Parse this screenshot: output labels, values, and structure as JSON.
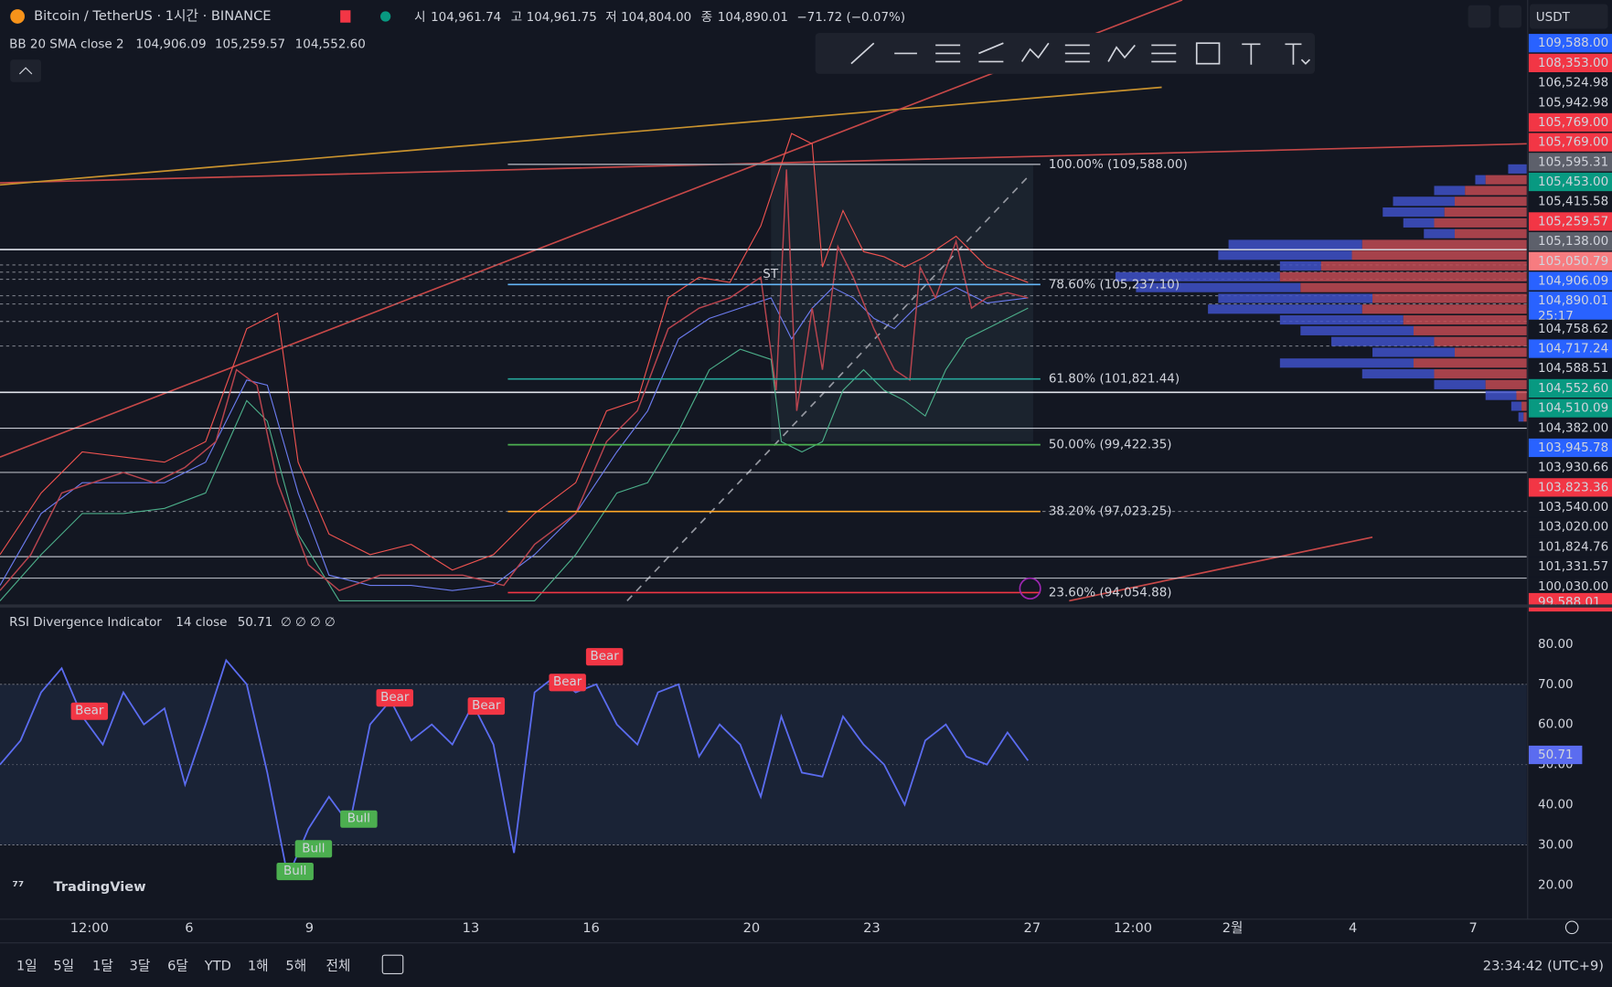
{
  "header": {
    "symbol": "Bitcoin / TetherUS · 1시간 · BINANCE",
    "open_label": "시",
    "open": "104,961.74",
    "high_label": "고",
    "high": "104,961.75",
    "low_label": "저",
    "low": "104,804.00",
    "close_label": "종",
    "close": "104,890.01",
    "change": "−71.72 (−0.07%)",
    "currency": "USDT"
  },
  "bb": {
    "name": "BB 20 SMA close 2",
    "basis": "104,906.09",
    "upper": "105,259.57",
    "lower": "104,552.60"
  },
  "price_labels": [
    {
      "text": "109,588.00",
      "color": "#2962ff"
    },
    {
      "text": "108,353.00",
      "color": "#f23645"
    },
    {
      "text": "106,524.98",
      "color": "#000000"
    },
    {
      "text": "105,942.98",
      "color": "#000000"
    },
    {
      "text": "105,769.00",
      "color": "#f23645"
    },
    {
      "text": "105,769.00",
      "color": "#f23645"
    },
    {
      "text": "105,595.31",
      "color": "#5d606b"
    },
    {
      "text": "105,453.00",
      "color": "#089981"
    },
    {
      "text": "105,415.58",
      "color": "#000000"
    },
    {
      "text": "105,259.57",
      "color": "#f23645"
    },
    {
      "text": "105,138.00",
      "color": "#5d606b"
    },
    {
      "text": "105,050.79",
      "color": "#f77c80"
    },
    {
      "text": "104,906.09",
      "color": "#2962ff"
    },
    {
      "text": "104,890.01",
      "color": "#2962ff"
    },
    {
      "text": "104,758.62",
      "color": "#000000"
    },
    {
      "text": "104,717.24",
      "color": "#2962ff"
    },
    {
      "text": "104,588.51",
      "color": "#000000"
    },
    {
      "text": "104,552.60",
      "color": "#089981"
    },
    {
      "text": "104,510.09",
      "color": "#089981"
    },
    {
      "text": "104,382.00",
      "color": "#000000"
    },
    {
      "text": "103,945.78",
      "color": "#2962ff"
    },
    {
      "text": "103,930.66",
      "color": "#000000"
    },
    {
      "text": "103,823.36",
      "color": "#f23645"
    },
    {
      "text": "103,540.00",
      "color": "#000000"
    },
    {
      "text": "103,020.00",
      "color": "#000000"
    },
    {
      "text": "101,824.76",
      "color": "#000000"
    },
    {
      "text": "101,331.57",
      "color": "#000000"
    },
    {
      "text": "100,030.00",
      "color": "#000000"
    },
    {
      "text": "99,588.01",
      "color": "#f23645"
    }
  ],
  "countdown": "25:17",
  "fib_levels": [
    {
      "text": "100.00% (109,588.00)",
      "color": "#9598a1"
    },
    {
      "text": "78.60% (105,237.10)",
      "color": "#64b5f6"
    },
    {
      "text": "61.80% (101,821.44)",
      "color": "#26a69a"
    },
    {
      "text": "50.00% (99,422.35)",
      "color": "#4caf50"
    },
    {
      "text": "38.20% (97,023.25)",
      "color": "#ffa726"
    },
    {
      "text": "23.60% (94,054.88)",
      "color": "#f23645"
    }
  ],
  "rsi": {
    "title": "RSI Divergence Indicator",
    "params": "14 close",
    "value": "50.71",
    "flags": "∅ ∅ ∅ ∅",
    "color": "#5b6cf0",
    "values": [
      50,
      56,
      68,
      74,
      62,
      55,
      68,
      60,
      64,
      45,
      60,
      76,
      70,
      48,
      22,
      34,
      42,
      35,
      60,
      66,
      56,
      60,
      55,
      65,
      55,
      28,
      68,
      72,
      68,
      70,
      60,
      55,
      68,
      70,
      52,
      60,
      55,
      42,
      62,
      48,
      47,
      62,
      55,
      50,
      40,
      56,
      60,
      52,
      50,
      58,
      51
    ],
    "ylim": [
      12,
      89
    ],
    "yticks": [
      {
        "value": 80,
        "label": "80.00"
      },
      {
        "value": 70,
        "label": "70.00"
      },
      {
        "value": 60,
        "label": "60.00"
      },
      {
        "value": 50,
        "label": "50.00"
      },
      {
        "value": 40,
        "label": "40.00"
      },
      {
        "value": 30,
        "label": "30.00"
      },
      {
        "value": 20,
        "label": "20.00"
      }
    ],
    "signals": [
      "Bear",
      "Bear",
      "Bear",
      "Bear",
      "Bear",
      "Bull",
      "Bull",
      "Bull"
    ]
  },
  "time_axis": [
    "12:00",
    "6",
    "9",
    "13",
    "16",
    "20",
    "23",
    "27",
    "12:00",
    "2월",
    "4",
    "7"
  ],
  "logo": "TradingView",
  "ranges": [
    "1일",
    "5일",
    "1달",
    "3달",
    "6달",
    "YTD",
    "1해",
    "5해",
    "전체"
  ],
  "clock": "23:34:42 (UTC+9)"
}
